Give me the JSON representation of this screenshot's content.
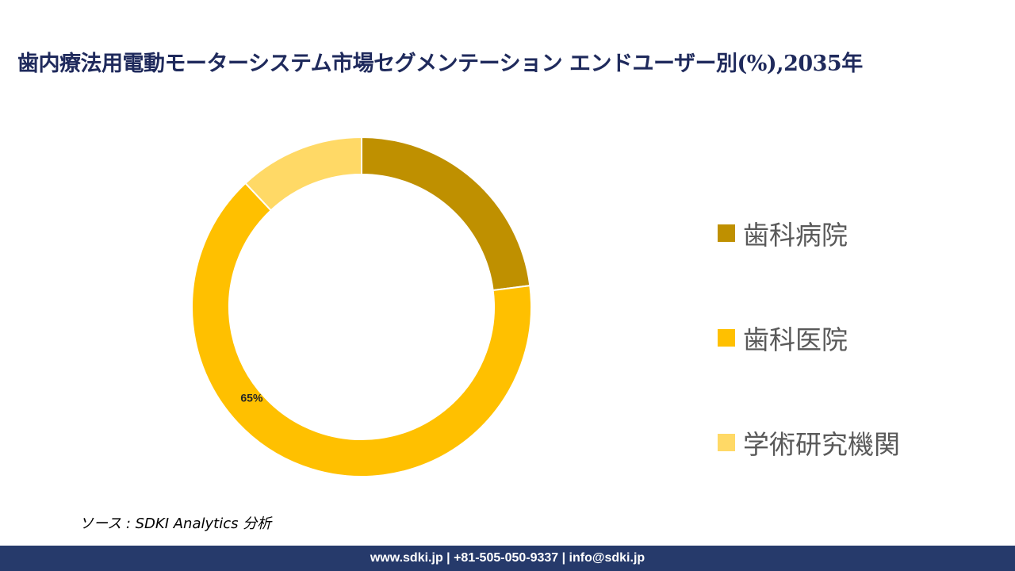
{
  "chart_data": {
    "type": "pie",
    "title": "歯内療法用電動モーターシステム市場セグメンテーション エンドユーザー別(%),2035年",
    "categories": [
      "歯科病院",
      "歯科医院",
      "学術研究機関"
    ],
    "values": [
      23,
      65,
      12
    ],
    "colors": [
      "#bf9000",
      "#ffc000",
      "#ffd966"
    ],
    "data_labels": [
      "",
      "65%",
      ""
    ],
    "legend_position": "right",
    "donut": true
  },
  "source_text": "ソース : SDKI Analytics 分析",
  "footer_text": "www.sdki.jp | +81-505-050-9337 | info@sdki.jp"
}
